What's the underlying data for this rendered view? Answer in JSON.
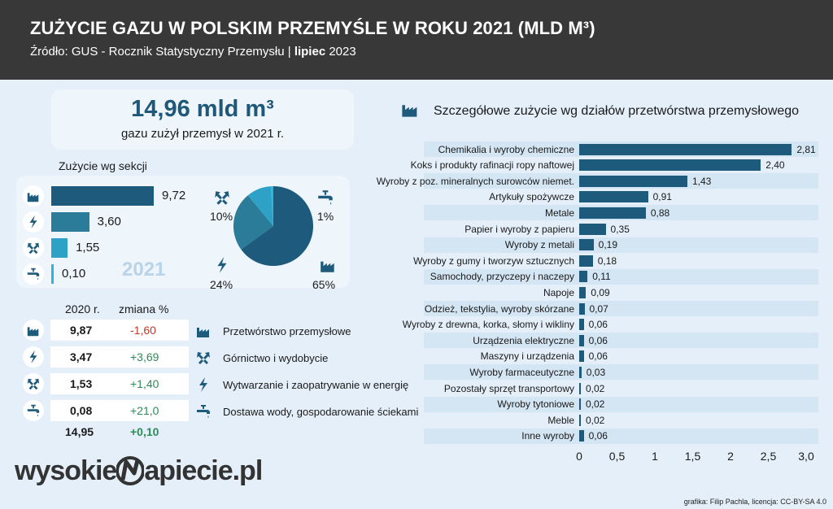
{
  "header": {
    "title": "ZUŻYCIE GAZU W POLSKIM PRZEMYŚLE W ROKU 2021 (MLD M³)",
    "source_prefix": "Źródło:  GUS - Rocznik Statystyczny Przemysłu | ",
    "source_bold": "lipiec",
    "source_suffix": " 2023"
  },
  "kpi": {
    "value": "14,96  mld m³",
    "subtitle": "gazu zużył przemysł w 2021 r."
  },
  "sections": {
    "title": "Zużycie wg sekcji",
    "year_label": "2021",
    "items": [
      {
        "name": "Przetwórstwo przemysłowe",
        "icon": "factory-icon",
        "value": 9.72,
        "label": "9,72",
        "color": "#1e5a7b"
      },
      {
        "name": "Wytwarzanie i zaopatrywanie w energię",
        "icon": "lightning-icon",
        "value": 3.6,
        "label": "3,60",
        "color": "#2a7c99"
      },
      {
        "name": "Górnictwo i wydobycie",
        "icon": "hammers-icon",
        "value": 1.55,
        "label": "1,55",
        "color": "#2ea1c6"
      },
      {
        "name": "Dostawa wody, gospodarowanie ściekami",
        "icon": "water-tap-icon",
        "value": 0.1,
        "label": "0,10",
        "color": "#2bb7dd"
      }
    ]
  },
  "pie": {
    "slices": [
      {
        "label": "65%",
        "value": 65,
        "color": "#1e5a7b"
      },
      {
        "label": "24%",
        "value": 24,
        "color": "#2a7c99"
      },
      {
        "label": "10%",
        "value": 10,
        "color": "#2ea1c6"
      },
      {
        "label": "1%",
        "value": 1,
        "color": "#2bb7dd"
      }
    ]
  },
  "table": {
    "col_2020": "2020 r.",
    "col_change": "zmiana %",
    "rows": [
      {
        "icon": "factory-icon",
        "v2020": "9,87",
        "change": "-1,60",
        "positive": false
      },
      {
        "icon": "lightning-icon",
        "v2020": "3,47",
        "change": "+3,69",
        "positive": true
      },
      {
        "icon": "hammers-icon",
        "v2020": "1,53",
        "change": "+1,40",
        "positive": true
      },
      {
        "icon": "water-tap-icon",
        "v2020": "0,08",
        "change": "+21,0",
        "positive": true
      }
    ],
    "total_2020": "14,95",
    "total_change": "+0,10",
    "colors": {
      "negative": "#c0392b",
      "positive": "#2e8b57"
    }
  },
  "legend": [
    {
      "icon": "factory-icon",
      "label": "Przetwórstwo przemysłowe"
    },
    {
      "icon": "hammers-icon",
      "label": "Górnictwo i wydobycie"
    },
    {
      "icon": "lightning-icon",
      "label": "Wytwarzanie i zaopatrywanie w energię"
    },
    {
      "icon": "water-tap-icon",
      "label": "Dostawa wody, gospodarowanie ściekami"
    }
  ],
  "chart_data": {
    "type": "bar",
    "orientation": "horizontal",
    "title": "Szczegółowe zużycie wg działów przetwórstwa przemysłowego",
    "xlim": [
      0,
      3.0
    ],
    "xticks": [
      "0",
      "0,5",
      "1",
      "1,5",
      "2",
      "2,5",
      "3,0"
    ],
    "categories": [
      "Chemikalia i wyroby chemiczne",
      "Koks i produkty rafinacji ropy naftowej",
      "Wyroby z poz. mineralnych surowców niemet.",
      "Artykuły spożywcze",
      "Metale",
      "Papier i wyroby z papieru",
      "Wyroby z metali",
      "Wyroby z gumy i tworzyw sztucznych",
      "Samochody, przyczepy i naczepy",
      "Napoje",
      "Odzież, tekstylia, wyroby skórzane",
      "Wyroby z drewna, korka, słomy i wikliny",
      "Urządzenia elektryczne",
      "Maszyny i urządzenia",
      "Wyroby farmaceutyczne",
      "Pozostały sprzęt transportowy",
      "Wyroby tytoniowe",
      "Meble",
      "Inne wyroby"
    ],
    "values": [
      2.81,
      2.4,
      1.43,
      0.91,
      0.88,
      0.35,
      0.19,
      0.18,
      0.11,
      0.09,
      0.07,
      0.06,
      0.06,
      0.06,
      0.03,
      0.02,
      0.02,
      0.02,
      0.06
    ],
    "labels": [
      "2,81",
      "2,40",
      "1,43",
      "0,91",
      "0,88",
      "0,35",
      "0,19",
      "0,18",
      "0,11",
      "0,09",
      "0,07",
      "0,06",
      "0,06",
      "0,06",
      "0,03",
      "0,02",
      "0,02",
      "0,02",
      "0,06"
    ],
    "bar_color": "#1e5a7b",
    "grid": false
  },
  "footer": {
    "logo_left": "wysokie",
    "logo_right": "apiecie.pl",
    "credit": "grafika: Filip Pachla, licencja: CC-BY-SA 4.0"
  }
}
